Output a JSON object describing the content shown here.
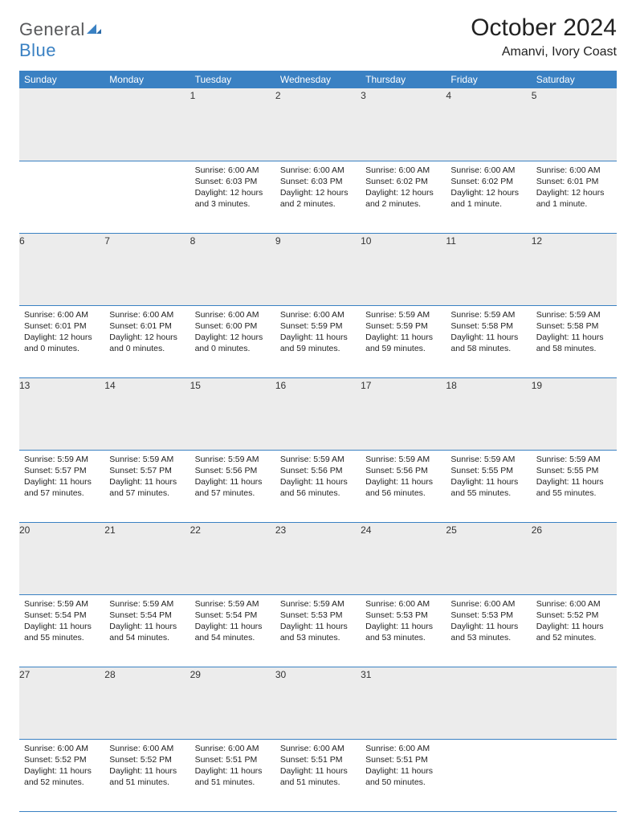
{
  "logo": {
    "part1": "General",
    "part2": "Blue"
  },
  "title": "October 2024",
  "location": "Amanvi, Ivory Coast",
  "colors": {
    "header_bg": "#3a81c3",
    "header_text": "#ffffff",
    "daynum_bg": "#ececec",
    "cell_border": "#3a81c3",
    "body_text": "#232323",
    "page_bg": "#ffffff"
  },
  "fonts": {
    "title_size": 30,
    "location_size": 16,
    "header_size": 12,
    "daynum_size": 12,
    "body_size": 10.5
  },
  "columns": [
    "Sunday",
    "Monday",
    "Tuesday",
    "Wednesday",
    "Thursday",
    "Friday",
    "Saturday"
  ],
  "weeks": [
    {
      "nums": [
        "",
        "",
        "1",
        "2",
        "3",
        "4",
        "5"
      ],
      "cells": [
        "",
        "",
        "Sunrise: 6:00 AM\nSunset: 6:03 PM\nDaylight: 12 hours and 3 minutes.",
        "Sunrise: 6:00 AM\nSunset: 6:03 PM\nDaylight: 12 hours and 2 minutes.",
        "Sunrise: 6:00 AM\nSunset: 6:02 PM\nDaylight: 12 hours and 2 minutes.",
        "Sunrise: 6:00 AM\nSunset: 6:02 PM\nDaylight: 12 hours and 1 minute.",
        "Sunrise: 6:00 AM\nSunset: 6:01 PM\nDaylight: 12 hours and 1 minute."
      ]
    },
    {
      "nums": [
        "6",
        "7",
        "8",
        "9",
        "10",
        "11",
        "12"
      ],
      "cells": [
        "Sunrise: 6:00 AM\nSunset: 6:01 PM\nDaylight: 12 hours and 0 minutes.",
        "Sunrise: 6:00 AM\nSunset: 6:01 PM\nDaylight: 12 hours and 0 minutes.",
        "Sunrise: 6:00 AM\nSunset: 6:00 PM\nDaylight: 12 hours and 0 minutes.",
        "Sunrise: 6:00 AM\nSunset: 5:59 PM\nDaylight: 11 hours and 59 minutes.",
        "Sunrise: 5:59 AM\nSunset: 5:59 PM\nDaylight: 11 hours and 59 minutes.",
        "Sunrise: 5:59 AM\nSunset: 5:58 PM\nDaylight: 11 hours and 58 minutes.",
        "Sunrise: 5:59 AM\nSunset: 5:58 PM\nDaylight: 11 hours and 58 minutes."
      ]
    },
    {
      "nums": [
        "13",
        "14",
        "15",
        "16",
        "17",
        "18",
        "19"
      ],
      "cells": [
        "Sunrise: 5:59 AM\nSunset: 5:57 PM\nDaylight: 11 hours and 57 minutes.",
        "Sunrise: 5:59 AM\nSunset: 5:57 PM\nDaylight: 11 hours and 57 minutes.",
        "Sunrise: 5:59 AM\nSunset: 5:56 PM\nDaylight: 11 hours and 57 minutes.",
        "Sunrise: 5:59 AM\nSunset: 5:56 PM\nDaylight: 11 hours and 56 minutes.",
        "Sunrise: 5:59 AM\nSunset: 5:56 PM\nDaylight: 11 hours and 56 minutes.",
        "Sunrise: 5:59 AM\nSunset: 5:55 PM\nDaylight: 11 hours and 55 minutes.",
        "Sunrise: 5:59 AM\nSunset: 5:55 PM\nDaylight: 11 hours and 55 minutes."
      ]
    },
    {
      "nums": [
        "20",
        "21",
        "22",
        "23",
        "24",
        "25",
        "26"
      ],
      "cells": [
        "Sunrise: 5:59 AM\nSunset: 5:54 PM\nDaylight: 11 hours and 55 minutes.",
        "Sunrise: 5:59 AM\nSunset: 5:54 PM\nDaylight: 11 hours and 54 minutes.",
        "Sunrise: 5:59 AM\nSunset: 5:54 PM\nDaylight: 11 hours and 54 minutes.",
        "Sunrise: 5:59 AM\nSunset: 5:53 PM\nDaylight: 11 hours and 53 minutes.",
        "Sunrise: 6:00 AM\nSunset: 5:53 PM\nDaylight: 11 hours and 53 minutes.",
        "Sunrise: 6:00 AM\nSunset: 5:53 PM\nDaylight: 11 hours and 53 minutes.",
        "Sunrise: 6:00 AM\nSunset: 5:52 PM\nDaylight: 11 hours and 52 minutes."
      ]
    },
    {
      "nums": [
        "27",
        "28",
        "29",
        "30",
        "31",
        "",
        ""
      ],
      "cells": [
        "Sunrise: 6:00 AM\nSunset: 5:52 PM\nDaylight: 11 hours and 52 minutes.",
        "Sunrise: 6:00 AM\nSunset: 5:52 PM\nDaylight: 11 hours and 51 minutes.",
        "Sunrise: 6:00 AM\nSunset: 5:51 PM\nDaylight: 11 hours and 51 minutes.",
        "Sunrise: 6:00 AM\nSunset: 5:51 PM\nDaylight: 11 hours and 51 minutes.",
        "Sunrise: 6:00 AM\nSunset: 5:51 PM\nDaylight: 11 hours and 50 minutes.",
        "",
        ""
      ]
    }
  ]
}
